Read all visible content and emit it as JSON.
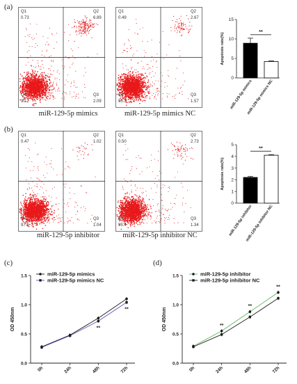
{
  "panels": {
    "a": "(a)",
    "b": "(b)",
    "c": "(c)",
    "d": "(d)"
  },
  "flow_captions": {
    "a_left": "miR-129-5p mimics",
    "a_right": "miR-129-5p mimics NC",
    "b_left": "miR-129-5p inhibitor",
    "b_right": "miR-129-5p inhibitor NC"
  },
  "flow_quadrants": {
    "a_left": {
      "Q1": "0.73",
      "Q2": "6.89",
      "Q3": "2.09",
      "Q4": "90.2"
    },
    "a_right": {
      "Q1": "0.49",
      "Q2": "2.67",
      "Q3": "1.57",
      "Q4": "95.3"
    },
    "b_left": {
      "Q1": "0.47",
      "Q2": "1.02",
      "Q3": "1.04",
      "Q4": "97.5"
    },
    "b_right": {
      "Q1": "0.50",
      "Q2": "2.73",
      "Q3": "1.34",
      "Q4": "95.4"
    }
  },
  "quadrant_names": [
    "Q1",
    "Q2",
    "Q3",
    "Q4"
  ],
  "colors": {
    "dots": "#e8191b",
    "bar_dark": "#000000",
    "bar_light": "#ffffff",
    "line_mimics": "#1a1a1a",
    "line_mimics_nc": "#5a54b8",
    "line_inhibitor": "#5ab85a",
    "line_inhibitor_nc": "#1a1a1a"
  },
  "chart_data": [
    {
      "type": "bar",
      "panel": "a",
      "categories": [
        "miR-129-5p mimics",
        "miR-129-5p mimics NC"
      ],
      "values": [
        8.9,
        4.2
      ],
      "errors": [
        1.3,
        0.15
      ],
      "ylabel": "Apoptosis rate(%)",
      "ylim": [
        0,
        15
      ],
      "yticks": [
        0,
        5,
        10,
        15
      ],
      "significance": "**"
    },
    {
      "type": "bar",
      "panel": "b",
      "categories": [
        "miR-129-5p inhibitor",
        "miR-129-5p inhibitor NC"
      ],
      "values": [
        2.2,
        4.1
      ],
      "errors": [
        0.08,
        0.05
      ],
      "ylabel": "Apoptosis rate(%)",
      "ylim": [
        0,
        5
      ],
      "yticks": [
        0,
        1,
        2,
        3,
        4,
        5
      ],
      "significance": "**"
    },
    {
      "type": "line",
      "panel": "c",
      "categories": [
        "0h",
        "24h",
        "48h",
        "72h"
      ],
      "series": [
        {
          "name": "miR-129-5p mimics",
          "values": [
            0.28,
            0.48,
            0.77,
            1.1
          ]
        },
        {
          "name": "miR-129-5p mimics NC",
          "values": [
            0.27,
            0.47,
            0.72,
            1.04
          ]
        }
      ],
      "ylabel": "OD 450nm",
      "ylim": [
        0,
        1.5
      ],
      "yticks": [
        "0.0",
        "0.5",
        "1.0",
        "1.5"
      ],
      "significance_labels": [
        {
          "category": "48h",
          "text": "**"
        },
        {
          "category": "72h",
          "text": "**"
        }
      ]
    },
    {
      "type": "line",
      "panel": "d",
      "categories": [
        "0h",
        "24h",
        "48h",
        "72h"
      ],
      "series": [
        {
          "name": "miR-129-5p inhibitor",
          "values": [
            0.29,
            0.55,
            0.88,
            1.21
          ]
        },
        {
          "name": "miR-129-5p inhibitor NC",
          "values": [
            0.28,
            0.49,
            0.79,
            1.11
          ]
        }
      ],
      "ylabel": "OD 450nm",
      "ylim": [
        0,
        1.5
      ],
      "yticks": [
        "0.0",
        "0.5",
        "1.0",
        "1.5"
      ],
      "significance_labels": [
        {
          "category": "24h",
          "text": "**"
        },
        {
          "category": "48h",
          "text": "**"
        },
        {
          "category": "72h",
          "text": "**"
        }
      ]
    }
  ]
}
